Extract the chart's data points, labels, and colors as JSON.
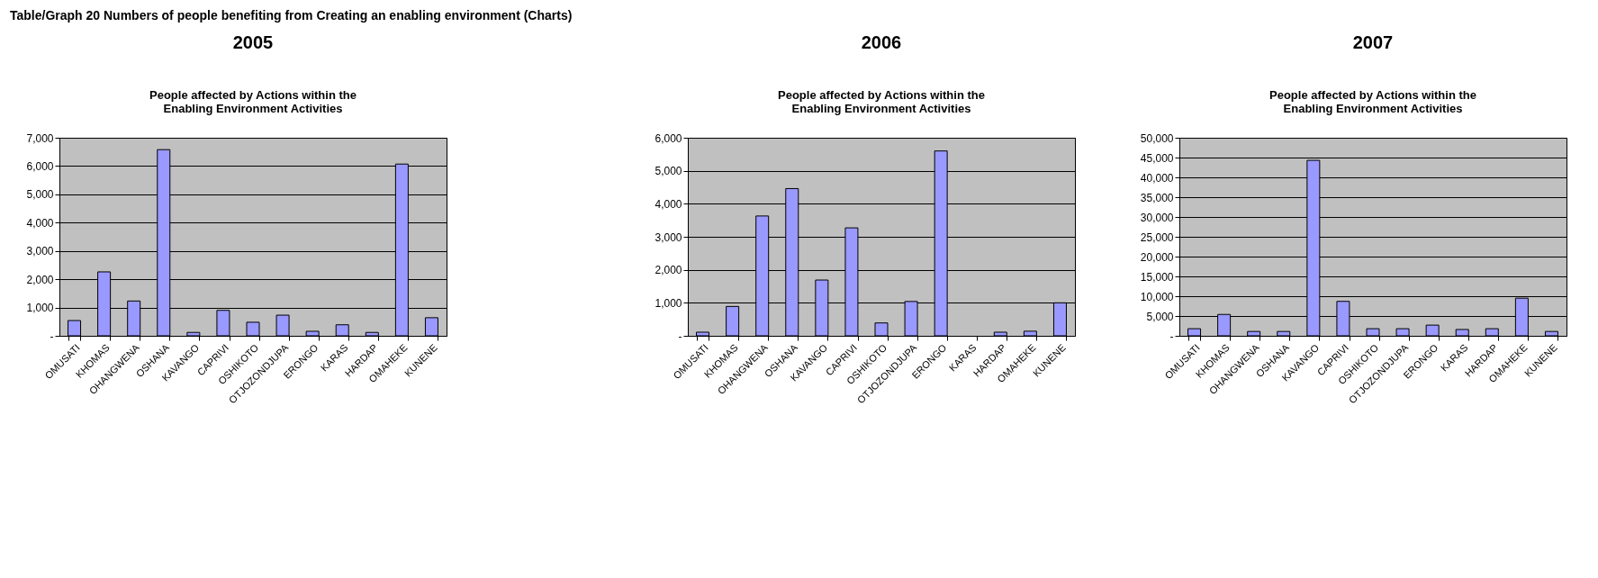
{
  "chart_data": [
    {
      "type": "bar",
      "title": "People affected by Actions within the Enabling Environment Activities",
      "annotations": [
        "Table/Graph 20      Numbers of people benefiting from Creating an enabling environment (Charts)",
        "2005"
      ],
      "categories": [
        "OMUSATI",
        "KHOMAS",
        "OHANGWENA",
        "OSHANA",
        "KAVANGO",
        "CAPRIVI",
        "OSHIKOTO",
        "OTJOZONDJUPA",
        "ERONGO",
        "KARAS",
        "HARDAP",
        "OMAHEKE",
        "KUNENE"
      ],
      "values": [
        540,
        2260,
        1230,
        6580,
        120,
        900,
        480,
        730,
        160,
        390,
        120,
        6070,
        640
      ],
      "color": "#9999ff",
      "ylim": [
        0,
        7000
      ],
      "yticks": [
        {
          "value": 0,
          "label": "-"
        },
        {
          "value": 1000,
          "label": "1,000"
        },
        {
          "value": 2000,
          "label": "2,000"
        },
        {
          "value": 3000,
          "label": "3,000"
        },
        {
          "value": 4000,
          "label": "4,000"
        },
        {
          "value": 5000,
          "label": "5,000"
        },
        {
          "value": 6000,
          "label": "6,000"
        },
        {
          "value": 7000,
          "label": "7,000"
        }
      ],
      "grid": "y"
    },
    {
      "type": "bar",
      "title": "People affected by Actions within the Enabling Environment Activities",
      "annotations": [
        "2006"
      ],
      "categories": [
        "OMUSATI",
        "KHOMAS",
        "OHANGWENA",
        "OSHANA",
        "KAVANGO",
        "CAPRIVI",
        "OSHIKOTO",
        "OTJOZONDJUPA",
        "ERONGO",
        "KARAS",
        "HARDAP",
        "OMAHEKE",
        "KUNENE"
      ],
      "values": [
        110,
        890,
        3630,
        4460,
        1690,
        3270,
        390,
        1040,
        5600,
        null,
        110,
        140,
        1000
      ],
      "color": "#9999ff",
      "ylim": [
        0,
        6000
      ],
      "yticks": [
        {
          "value": 0,
          "label": "-"
        },
        {
          "value": 1000,
          "label": "1,000"
        },
        {
          "value": 2000,
          "label": "2,000"
        },
        {
          "value": 3000,
          "label": "3,000"
        },
        {
          "value": 4000,
          "label": "4,000"
        },
        {
          "value": 5000,
          "label": "5,000"
        },
        {
          "value": 6000,
          "label": "6,000"
        }
      ],
      "grid": "y"
    },
    {
      "type": "bar",
      "title": "People affected by Actions within the Enabling Environment Activities",
      "annotations": [
        "2007"
      ],
      "categories": [
        "OMUSATI",
        "KHOMAS",
        "OHANGWENA",
        "OSHANA",
        "KAVANGO",
        "CAPRIVI",
        "OSHIKOTO",
        "OTJOZONDJUPA",
        "ERONGO",
        "KARAS",
        "HARDAP",
        "OMAHEKE",
        "KUNENE"
      ],
      "values": [
        1800,
        5400,
        1100,
        1100,
        44300,
        8700,
        1800,
        1800,
        2700,
        1600,
        1800,
        9500,
        1100
      ],
      "color": "#9999ff",
      "ylim": [
        0,
        50000
      ],
      "yticks": [
        {
          "value": 0,
          "label": "-"
        },
        {
          "value": 5000,
          "label": "5,000"
        },
        {
          "value": 10000,
          "label": "10,000"
        },
        {
          "value": 15000,
          "label": "15,000"
        },
        {
          "value": 20000,
          "label": "20,000"
        },
        {
          "value": 25000,
          "label": "25,000"
        },
        {
          "value": 30000,
          "label": "30,000"
        },
        {
          "value": 35000,
          "label": "35,000"
        },
        {
          "value": 40000,
          "label": "40,000"
        },
        {
          "value": 45000,
          "label": "45,000"
        },
        {
          "value": 50000,
          "label": "50,000"
        }
      ],
      "grid": "y"
    }
  ]
}
